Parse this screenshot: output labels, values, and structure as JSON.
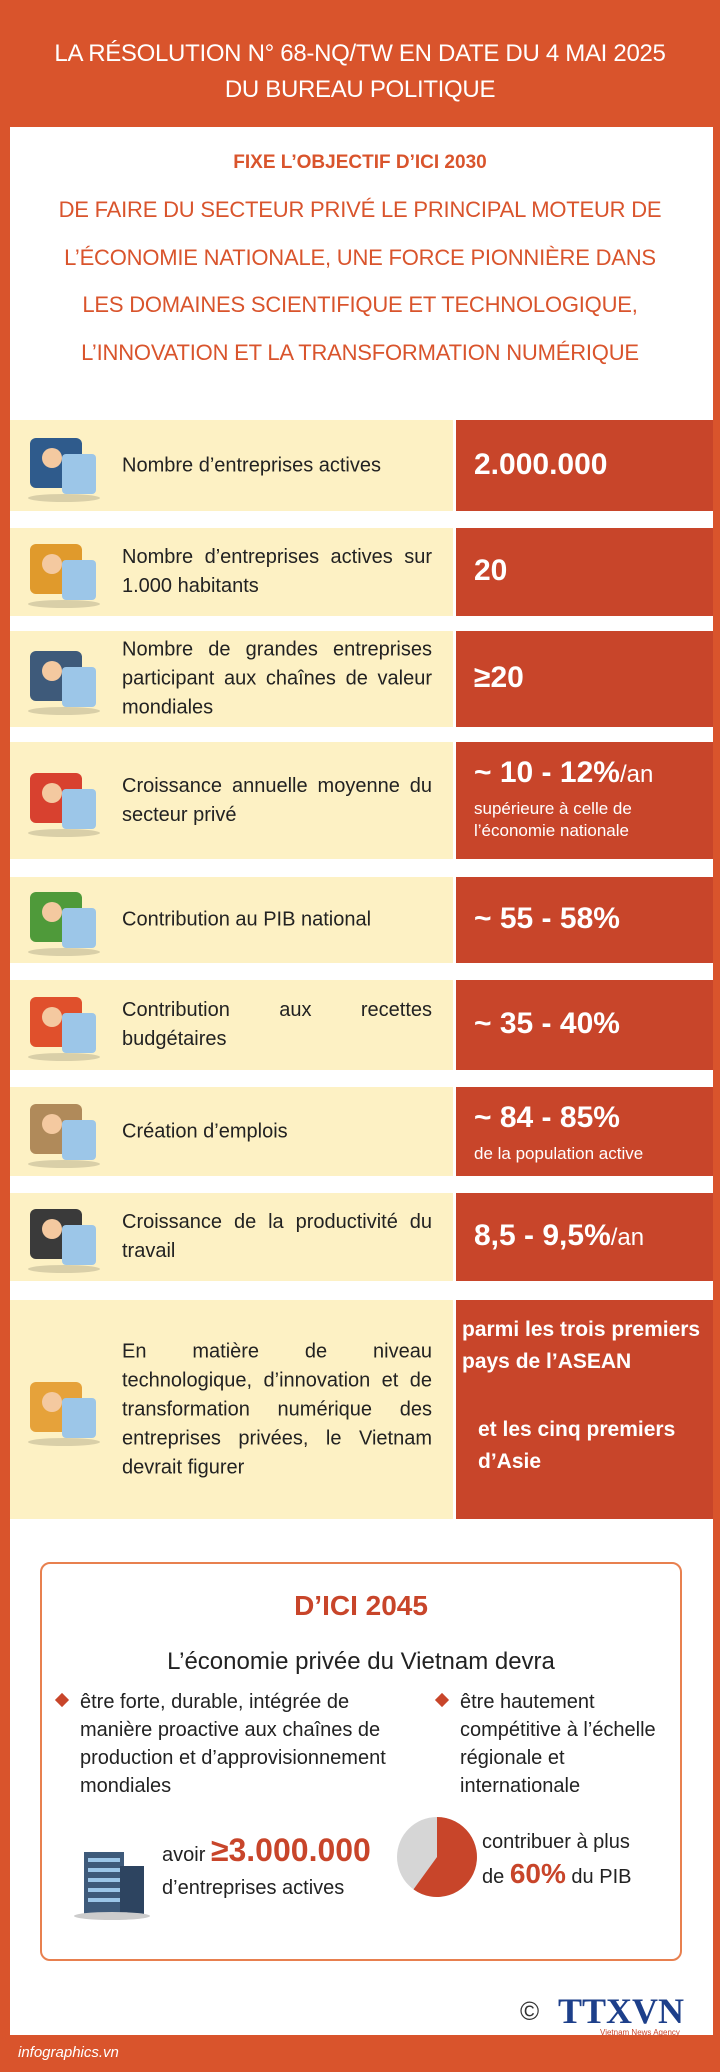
{
  "header": {
    "title_lines": [
      "LA RÉSOLUTION N° 68-NQ/TW EN DATE DU 4 MAI 2025",
      "DU BUREAU POLITIQUE"
    ]
  },
  "objective": {
    "heading": "FIXE L’OBJECTIF D’ICI 2030",
    "lines": [
      "DE FAIRE DU SECTEUR PRIVÉ LE PRINCIPAL MOTEUR DE",
      "L’ÉCONOMIE NATIONALE, UNE FORCE PIONNIÈRE DANS",
      "LES DOMAINES SCIENTIFIQUE ET TECHNOLOGIQUE,",
      "L’INNOVATION ET LA TRANSFORMATION NUMÉRIQUE"
    ]
  },
  "targets": [
    {
      "label": "Nombre d’entreprises actives",
      "value": "2.000.000"
    },
    {
      "label": "Nombre d’entreprises actives sur 1.000 habitants",
      "value": "20"
    },
    {
      "label": "Nombre de grandes entreprises participant aux chaînes de valeur mondiales",
      "value": "≥20"
    },
    {
      "label": "Croissance annuelle moyenne du secteur privé",
      "value": "~ 10 - 12%",
      "unit": "/an",
      "note": "supérieure à celle de l’économie nationale"
    },
    {
      "label": "Contribution au PIB national",
      "value": "~ 55 - 58%"
    },
    {
      "label": "Contribution aux recettes budgétaires",
      "value": "~ 35 - 40%"
    },
    {
      "label": "Création d’emplois",
      "value": "~ 84 - 85%",
      "note": "de la population active"
    },
    {
      "label": "Croissance de la productivité du travail",
      "value": "8,5 - 9,5%",
      "unit": "/an"
    },
    {
      "label": "En matière de niveau technologique, d’innovation et de transformation numérique des entreprises privées, le Vietnam devrait figurer",
      "value_lines": [
        "parmi les trois premiers pays de l’ASEAN",
        "et les cinq premiers d’Asie"
      ]
    }
  ],
  "vision_2045": {
    "title": "D’ICI 2045",
    "intro": "L’économie privée du Vietnam devra",
    "bullets": [
      "être forte, durable, intégrée de manière proactive aux chaînes de production et d’approvisionnement mondiales",
      "être hautement compétitive à l’échelle régionale et internationale"
    ],
    "stat_enterprises": {
      "prefix": "avoir",
      "value": "≥3.000.000",
      "suffix": "d’entreprises actives"
    },
    "stat_gdp": {
      "line1": "contribuer à plus",
      "prefix": "de",
      "value": "60%",
      "suffix": "du PIB"
    }
  },
  "footer": {
    "source": "infographics.vn",
    "copyright": "©",
    "logo": "TTXVN",
    "logo_sub": "Vietnam News Agency"
  }
}
